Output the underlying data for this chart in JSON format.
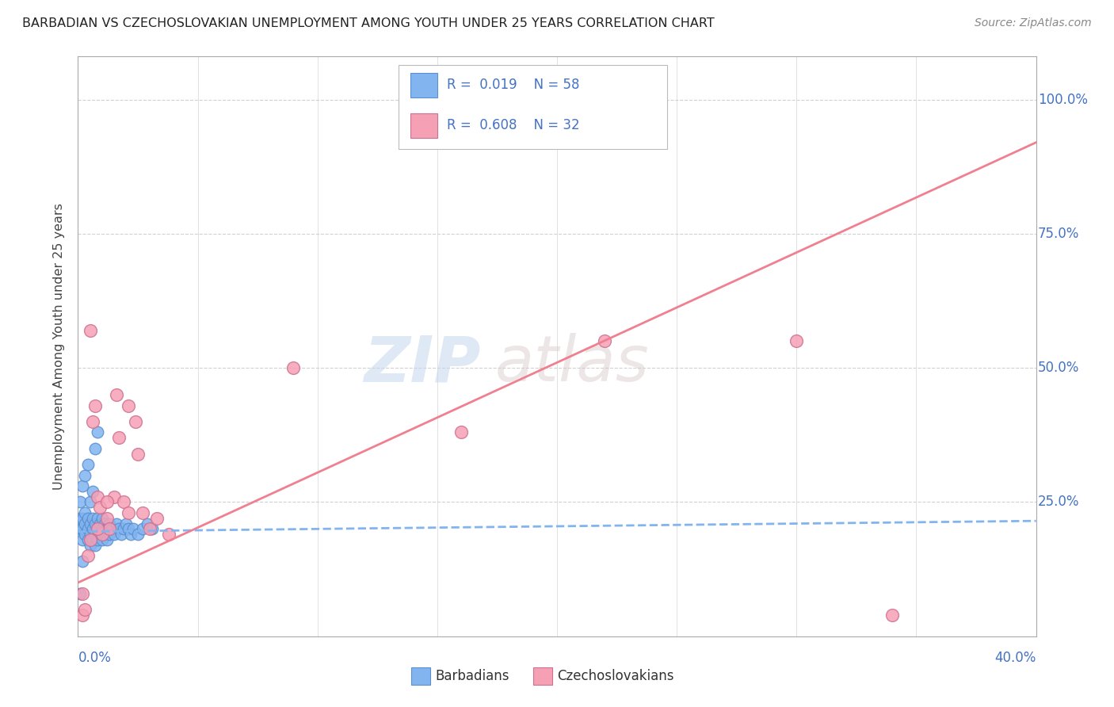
{
  "title": "BARBADIAN VS CZECHOSLOVAKIAN UNEMPLOYMENT AMONG YOUTH UNDER 25 YEARS CORRELATION CHART",
  "source": "Source: ZipAtlas.com",
  "ylabel": "Unemployment Among Youth under 25 years",
  "ytick_values": [
    0.25,
    0.5,
    0.75,
    1.0
  ],
  "ytick_labels": [
    "25.0%",
    "50.0%",
    "75.0%",
    "100.0%"
  ],
  "xlim": [
    0.0,
    0.4
  ],
  "ylim": [
    0.0,
    1.08
  ],
  "watermark_zip": "ZIP",
  "watermark_atlas": "atlas",
  "barbadian_color": "#82b4f0",
  "barbadian_edge": "#5a90d0",
  "czechoslovakian_color": "#f5a0b5",
  "czechoslovakian_edge": "#d07090",
  "trend_barbadian_color": "#82b4f0",
  "trend_czechoslovakian_color": "#f08090",
  "background_color": "#ffffff",
  "grid_color": "#cccccc",
  "axis_color": "#aaaaaa",
  "right_label_color": "#4472c4",
  "title_color": "#222222",
  "source_color": "#888888",
  "legend_text_color": "#4472c4",
  "barbadian_x": [
    0.001,
    0.001,
    0.001,
    0.002,
    0.002,
    0.002,
    0.002,
    0.003,
    0.003,
    0.003,
    0.004,
    0.004,
    0.004,
    0.005,
    0.005,
    0.005,
    0.006,
    0.006,
    0.006,
    0.007,
    0.007,
    0.007,
    0.008,
    0.008,
    0.008,
    0.009,
    0.009,
    0.01,
    0.01,
    0.01,
    0.011,
    0.011,
    0.012,
    0.012,
    0.013,
    0.013,
    0.014,
    0.015,
    0.016,
    0.017,
    0.018,
    0.019,
    0.02,
    0.021,
    0.022,
    0.023,
    0.025,
    0.027,
    0.029,
    0.031,
    0.001,
    0.002,
    0.003,
    0.004,
    0.005,
    0.006,
    0.007,
    0.008
  ],
  "barbadian_y": [
    0.2,
    0.22,
    0.25,
    0.18,
    0.2,
    0.22,
    0.28,
    0.19,
    0.21,
    0.23,
    0.18,
    0.2,
    0.22,
    0.17,
    0.19,
    0.21,
    0.18,
    0.2,
    0.22,
    0.17,
    0.19,
    0.21,
    0.18,
    0.2,
    0.22,
    0.19,
    0.21,
    0.18,
    0.2,
    0.22,
    0.19,
    0.21,
    0.18,
    0.2,
    0.19,
    0.21,
    0.2,
    0.19,
    0.21,
    0.2,
    0.19,
    0.2,
    0.21,
    0.2,
    0.19,
    0.2,
    0.19,
    0.2,
    0.21,
    0.2,
    0.08,
    0.14,
    0.3,
    0.32,
    0.25,
    0.27,
    0.35,
    0.38
  ],
  "czechoslovakian_x": [
    0.002,
    0.003,
    0.004,
    0.005,
    0.006,
    0.007,
    0.008,
    0.009,
    0.01,
    0.012,
    0.013,
    0.015,
    0.017,
    0.019,
    0.021,
    0.024,
    0.027,
    0.03,
    0.033,
    0.038,
    0.002,
    0.005,
    0.008,
    0.012,
    0.016,
    0.021,
    0.025,
    0.09,
    0.16,
    0.22,
    0.3,
    0.34
  ],
  "czechoslovakian_y": [
    0.04,
    0.05,
    0.15,
    0.18,
    0.4,
    0.43,
    0.26,
    0.24,
    0.19,
    0.22,
    0.2,
    0.26,
    0.37,
    0.25,
    0.43,
    0.4,
    0.23,
    0.2,
    0.22,
    0.19,
    0.08,
    0.57,
    0.2,
    0.25,
    0.45,
    0.23,
    0.34,
    0.5,
    0.38,
    0.55,
    0.55,
    0.04
  ],
  "trend_b_x0": 0.0,
  "trend_b_x1": 0.4,
  "trend_b_y0": 0.195,
  "trend_b_y1": 0.215,
  "trend_c_x0": 0.0,
  "trend_c_x1": 0.4,
  "trend_c_y0": 0.1,
  "trend_c_y1": 0.92
}
